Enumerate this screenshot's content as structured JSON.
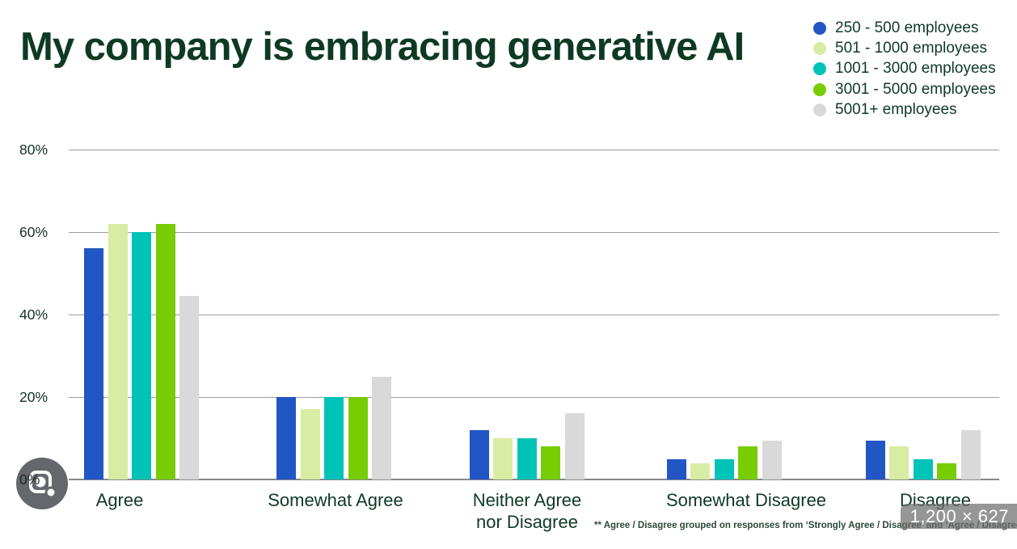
{
  "title": "My company is embracing generative AI",
  "legend": {
    "items": [
      {
        "label": "250 - 500 employees",
        "color": "#2256c4"
      },
      {
        "label": "501 - 1000 employees",
        "color": "#d9eca3"
      },
      {
        "label": "1001 - 3000 employees",
        "color": "#00c3b8"
      },
      {
        "label": "3001 - 5000 employees",
        "color": "#78cc02"
      },
      {
        "label": "5001+ employees",
        "color": "#d9d9d9"
      }
    ]
  },
  "chart_data": {
    "type": "bar",
    "title": "My company is embracing generative AI",
    "categories": [
      "Agree",
      "Somewhat Agree",
      "Neither Agree nor Disagree",
      "Somewhat Disagree",
      "Disagree"
    ],
    "series": [
      {
        "name": "250 - 500 employees",
        "color": "#2256c4",
        "values": [
          56,
          20,
          12,
          5,
          9.5
        ]
      },
      {
        "name": "501 - 1000 employees",
        "color": "#d9eca3",
        "values": [
          62,
          17,
          10,
          4,
          8
        ]
      },
      {
        "name": "1001 - 3000 employees",
        "color": "#00c3b8",
        "values": [
          60,
          20,
          10,
          5,
          5
        ]
      },
      {
        "name": "3001 - 5000 employees",
        "color": "#78cc02",
        "values": [
          62,
          20,
          8,
          8,
          4
        ]
      },
      {
        "name": "5001+ employees",
        "color": "#d9d9d9",
        "values": [
          44.5,
          25,
          16,
          9.5,
          12
        ]
      }
    ],
    "ylabel": "",
    "ylim": [
      0,
      80
    ],
    "yticks": [
      "80%",
      "60%",
      "40%",
      "20%",
      "0%"
    ],
    "grid": true,
    "legend_position": "top-right"
  },
  "category_labels_lines": [
    [
      "Agree"
    ],
    [
      "Somewhat Agree"
    ],
    [
      "Neither Agree",
      "nor Disagree"
    ],
    [
      "Somewhat Disagree"
    ],
    [
      "Disagree"
    ]
  ],
  "footnote": "** Agree / Disagree grouped on responses from ‘Strongly Agree / Disagree’ and ‘Agree / Disagree’",
  "overlays": {
    "dimension_badge": "1,200 × 627",
    "lens_icon": "google-lens-camera-icon"
  }
}
